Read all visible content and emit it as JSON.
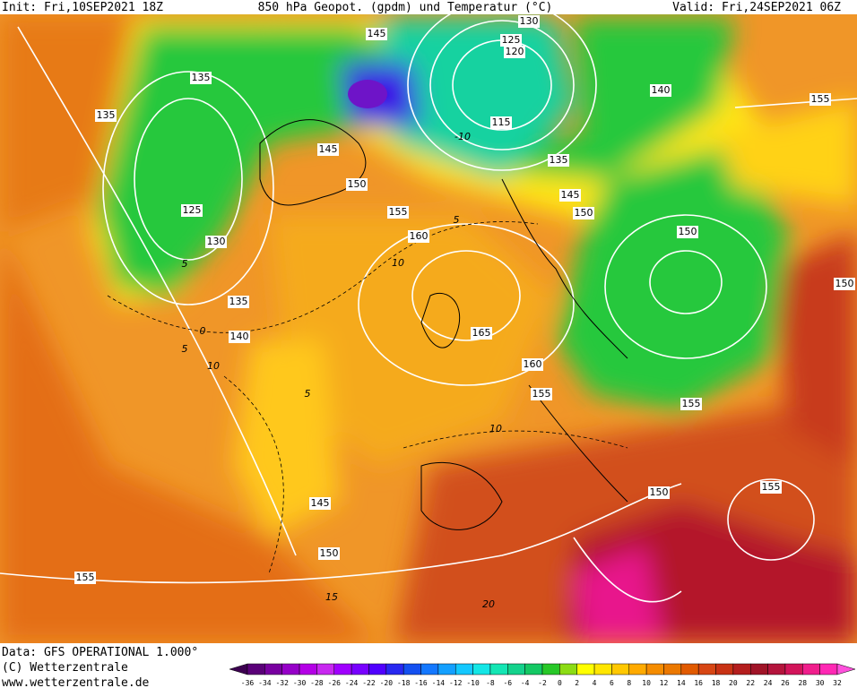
{
  "header": {
    "init": "Init: Fri,10SEP2021 18Z",
    "title": "850 hPa Geopot. (gpdm) und Temperatur (°C)",
    "valid": "Valid: Fri,24SEP2021 06Z"
  },
  "geopotential_labels": [
    145,
    130,
    125,
    120,
    135,
    135,
    140,
    155,
    115,
    145,
    135,
    150,
    145,
    155,
    150,
    125,
    160,
    150,
    130,
    150,
    135,
    140,
    165,
    160,
    155,
    155,
    150,
    155,
    145,
    150,
    155
  ],
  "temperature_labels": [
    -10,
    10,
    10,
    5,
    5,
    5,
    0,
    10,
    15,
    20,
    5
  ],
  "footer": {
    "data": "Data: GFS OPERATIONAL 1.000°",
    "copyright": "(C) Wetterzentrale",
    "url": "www.wetterzentrale.de"
  },
  "colorbar": {
    "ticks": [
      -36,
      -34,
      -32,
      -30,
      -28,
      -26,
      -24,
      -22,
      -20,
      -18,
      -16,
      -14,
      -12,
      -10,
      -8,
      -6,
      -4,
      -2,
      0,
      2,
      4,
      6,
      8,
      10,
      12,
      14,
      16,
      18,
      20,
      22,
      24,
      26,
      28,
      30,
      32
    ],
    "colors": [
      "#3c0050",
      "#5a0078",
      "#7800a0",
      "#9600c8",
      "#b400e6",
      "#c828f0",
      "#a000ff",
      "#7800ff",
      "#5000ff",
      "#2828f0",
      "#1450f0",
      "#1478ff",
      "#14a0ff",
      "#14c8ff",
      "#14e6e6",
      "#14e6b4",
      "#14d28c",
      "#14c864",
      "#28c828",
      "#8cdc14",
      "#ffff00",
      "#ffe600",
      "#ffc800",
      "#ffaa00",
      "#f58c00",
      "#eb7800",
      "#e15a00",
      "#d74614",
      "#c83214",
      "#b41e1e",
      "#a01428",
      "#b4143c",
      "#d2145a",
      "#f01e8c",
      "#ff28b4",
      "#ff50dc"
    ]
  }
}
